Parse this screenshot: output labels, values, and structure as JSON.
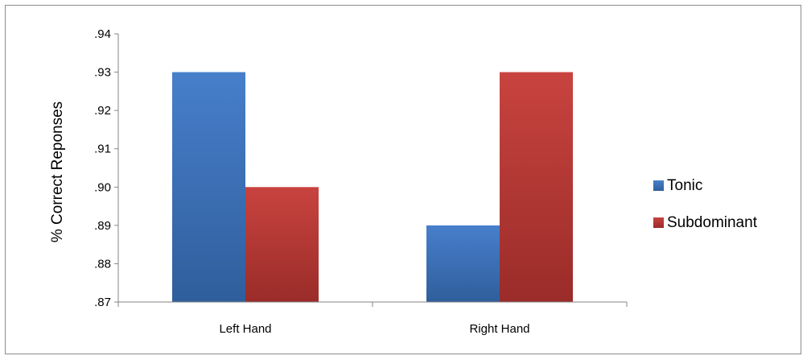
{
  "chart_data": {
    "type": "bar",
    "categories": [
      "Left Hand",
      "Right Hand"
    ],
    "series": [
      {
        "name": "Tonic",
        "values": [
          0.93,
          0.89
        ],
        "color": "#3d78c8"
      },
      {
        "name": "Subdominant",
        "values": [
          0.9,
          0.93
        ],
        "color": "#c53935"
      }
    ],
    "title": "",
    "xlabel": "",
    "ylabel": "% Correct Reponses",
    "ylim": [
      0.87,
      0.94
    ],
    "yticks": [
      ".87",
      ".88",
      ".89",
      ".90",
      ".91",
      ".92",
      ".93",
      ".94"
    ],
    "grid": false,
    "legend_position": "right"
  }
}
